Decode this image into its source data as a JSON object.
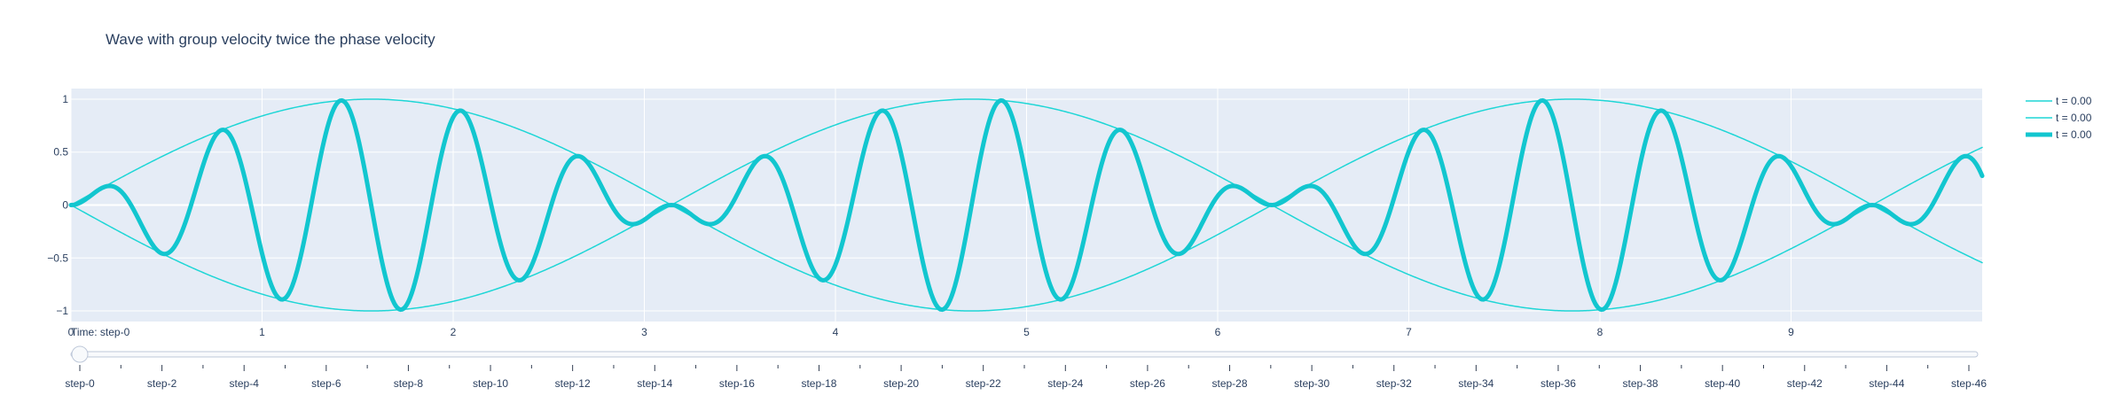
{
  "chart_data": {
    "type": "line",
    "title": "Wave with group velocity twice the phase velocity",
    "xlabel": "",
    "ylabel": "",
    "xlim": [
      0,
      10
    ],
    "ylim": [
      -1.1,
      1.1
    ],
    "x_ticks": [
      0,
      1,
      2,
      3,
      4,
      5,
      6,
      7,
      8,
      9
    ],
    "x_tick_labels": [
      "0",
      "1",
      "2",
      "3",
      "4",
      "5",
      "6",
      "7",
      "8",
      "9"
    ],
    "y_ticks": [
      1,
      0.5,
      0,
      -0.5,
      -1
    ],
    "y_tick_labels": [
      "1",
      "0.5",
      "0",
      "−0.5",
      "−1"
    ],
    "grid": true,
    "background_color": "#e5ecf6",
    "legend_position": "right",
    "series": [
      {
        "name": "t = 0.00",
        "formula": "sin(x)",
        "x_range": [
          0,
          10
        ],
        "color": "#1ed6d6",
        "line_width": 1.5
      },
      {
        "name": "t = 0.00",
        "formula": "-sin(x)",
        "x_range": [
          0,
          10
        ],
        "color": "#1ed6d6",
        "line_width": 1.5
      },
      {
        "name": "t = 0.00",
        "formula": "sin(x)*sin(10*x)",
        "x_range": [
          0,
          10
        ],
        "color": "#12c6cf",
        "line_width": 5
      }
    ],
    "slider": {
      "current_value_label": "Time: step-0",
      "active_step": 0,
      "labels": [
        "step-0",
        "step-2",
        "step-4",
        "step-6",
        "step-8",
        "step-10",
        "step-12",
        "step-14",
        "step-16",
        "step-18",
        "step-20",
        "step-22",
        "step-24",
        "step-26",
        "step-28",
        "step-30",
        "step-32",
        "step-34",
        "step-36",
        "step-38",
        "step-40",
        "step-42",
        "step-44",
        "step-46"
      ],
      "labelled_step_interval": 2,
      "total_steps": 47
    }
  }
}
